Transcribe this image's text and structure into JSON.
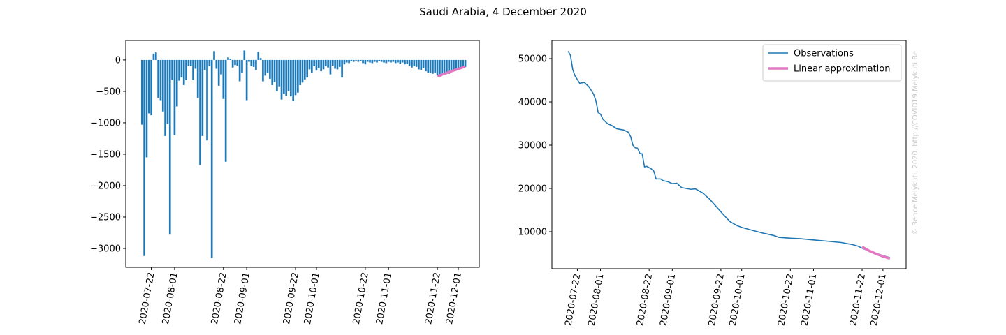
{
  "title": "Saudi Arabia, 4 December 2020",
  "annotation": "© Bence Melykuti, 2020. http://COVID19.Melykuti.Be",
  "chart_data": [
    {
      "type": "bar",
      "color": "#1f77b4",
      "x": [
        "2020-07-18",
        "2020-07-19",
        "2020-07-20",
        "2020-07-21",
        "2020-07-22",
        "2020-07-23",
        "2020-07-24",
        "2020-07-25",
        "2020-07-26",
        "2020-07-27",
        "2020-07-28",
        "2020-07-29",
        "2020-07-30",
        "2020-07-31",
        "2020-08-01",
        "2020-08-02",
        "2020-08-03",
        "2020-08-04",
        "2020-08-05",
        "2020-08-06",
        "2020-08-07",
        "2020-08-08",
        "2020-08-09",
        "2020-08-10",
        "2020-08-11",
        "2020-08-12",
        "2020-08-13",
        "2020-08-14",
        "2020-08-15",
        "2020-08-16",
        "2020-08-17",
        "2020-08-18",
        "2020-08-19",
        "2020-08-20",
        "2020-08-21",
        "2020-08-22",
        "2020-08-23",
        "2020-08-24",
        "2020-08-25",
        "2020-08-26",
        "2020-08-27",
        "2020-08-28",
        "2020-08-29",
        "2020-08-30",
        "2020-08-31",
        "2020-09-01",
        "2020-09-02",
        "2020-09-03",
        "2020-09-04",
        "2020-09-05",
        "2020-09-06",
        "2020-09-07",
        "2020-09-08",
        "2020-09-09",
        "2020-09-10",
        "2020-09-11",
        "2020-09-12",
        "2020-09-13",
        "2020-09-14",
        "2020-09-15",
        "2020-09-16",
        "2020-09-17",
        "2020-09-18",
        "2020-09-19",
        "2020-09-20",
        "2020-09-21",
        "2020-09-22",
        "2020-09-23",
        "2020-09-24",
        "2020-09-25",
        "2020-09-26",
        "2020-09-27",
        "2020-09-28",
        "2020-09-29",
        "2020-09-30",
        "2020-10-01",
        "2020-10-02",
        "2020-10-03",
        "2020-10-04",
        "2020-10-05",
        "2020-10-06",
        "2020-10-07",
        "2020-10-08",
        "2020-10-09",
        "2020-10-10",
        "2020-10-11",
        "2020-10-12",
        "2020-10-13",
        "2020-10-14",
        "2020-10-15",
        "2020-10-16",
        "2020-10-17",
        "2020-10-18",
        "2020-10-19",
        "2020-10-20",
        "2020-10-21",
        "2020-10-22",
        "2020-10-23",
        "2020-10-24",
        "2020-10-25",
        "2020-10-26",
        "2020-10-27",
        "2020-10-28",
        "2020-10-29",
        "2020-10-30",
        "2020-10-31",
        "2020-11-01",
        "2020-11-02",
        "2020-11-03",
        "2020-11-04",
        "2020-11-05",
        "2020-11-06",
        "2020-11-07",
        "2020-11-08",
        "2020-11-09",
        "2020-11-10",
        "2020-11-11",
        "2020-11-12",
        "2020-11-13",
        "2020-11-14",
        "2020-11-15",
        "2020-11-16",
        "2020-11-17",
        "2020-11-18",
        "2020-11-19",
        "2020-11-20",
        "2020-11-21",
        "2020-11-22",
        "2020-11-23",
        "2020-11-24",
        "2020-11-25",
        "2020-11-26",
        "2020-11-27",
        "2020-11-28",
        "2020-11-29",
        "2020-11-30",
        "2020-12-01",
        "2020-12-02",
        "2020-12-03",
        "2020-12-04"
      ],
      "values": [
        -1030,
        -3120,
        -1550,
        -850,
        -880,
        100,
        120,
        -600,
        -640,
        -820,
        -1210,
        -1020,
        -2780,
        -320,
        -1200,
        -740,
        -330,
        -280,
        -400,
        -320,
        -90,
        -100,
        -320,
        -140,
        -600,
        -1670,
        -1210,
        -160,
        -1280,
        -100,
        -3150,
        140,
        -140,
        -410,
        -230,
        -620,
        -1620,
        40,
        20,
        -120,
        -80,
        -90,
        -340,
        -200,
        150,
        -640,
        -30,
        -100,
        -110,
        -160,
        130,
        30,
        -340,
        -250,
        -200,
        -300,
        -400,
        -350,
        -500,
        -420,
        -630,
        -540,
        -570,
        -490,
        -580,
        -650,
        -560,
        -520,
        -400,
        -360,
        -310,
        -280,
        -150,
        -200,
        -100,
        -170,
        -130,
        -180,
        -150,
        -100,
        -120,
        -230,
        -90,
        -140,
        -150,
        -110,
        -280,
        -70,
        -40,
        -50,
        -20,
        -30,
        -10,
        -30,
        -20,
        -50,
        -70,
        -30,
        -40,
        -50,
        -30,
        -40,
        -20,
        -30,
        -40,
        -50,
        -30,
        -40,
        -30,
        -50,
        -40,
        -60,
        -40,
        -70,
        -60,
        -90,
        -120,
        -100,
        -110,
        -150,
        -160,
        -130,
        -180,
        -200,
        -210,
        -220,
        -200,
        -250,
        -270,
        -230,
        -240,
        -200,
        -220,
        -180,
        -160,
        -170,
        -150,
        -140,
        -130,
        -110
      ],
      "overlay": {
        "color": "#e377c2",
        "x": [
          "2020-11-22",
          "2020-11-28",
          "2020-12-04"
        ],
        "values": [
          -260,
          -180,
          -105
        ]
      },
      "xlim": [
        "2020-07-11",
        "2020-12-10"
      ],
      "ylim": [
        -3300,
        310
      ],
      "xticks": [
        "2020-07-22",
        "2020-08-01",
        "2020-08-22",
        "2020-09-01",
        "2020-09-22",
        "2020-10-01",
        "2020-10-22",
        "2020-11-01",
        "2020-11-22",
        "2020-12-01"
      ],
      "yticks": [
        0,
        {
          "value": -500,
          "label": "−500"
        },
        {
          "value": -1000,
          "label": "−1000"
        },
        {
          "value": -1500,
          "label": "−1500"
        },
        {
          "value": -2000,
          "label": "−2000"
        },
        {
          "value": -2500,
          "label": "−2500"
        },
        {
          "value": -3000,
          "label": "−3000"
        }
      ]
    },
    {
      "type": "line",
      "legend": "upper right",
      "series": [
        {
          "name": "Observations",
          "color": "#1f77b4",
          "x": [
            "2020-07-18",
            "2020-07-19",
            "2020-07-20",
            "2020-07-21",
            "2020-07-23",
            "2020-07-25",
            "2020-07-27",
            "2020-07-29",
            "2020-07-30",
            "2020-07-31",
            "2020-08-01",
            "2020-08-02",
            "2020-08-04",
            "2020-08-06",
            "2020-08-08",
            "2020-08-11",
            "2020-08-13",
            "2020-08-14",
            "2020-08-15",
            "2020-08-16",
            "2020-08-17",
            "2020-08-18",
            "2020-08-19",
            "2020-08-20",
            "2020-08-21",
            "2020-08-23",
            "2020-08-24",
            "2020-08-25",
            "2020-08-27",
            "2020-08-28",
            "2020-08-30",
            "2020-09-01",
            "2020-09-03",
            "2020-09-05",
            "2020-09-07",
            "2020-09-09",
            "2020-09-11",
            "2020-09-14",
            "2020-09-17",
            "2020-09-20",
            "2020-09-23",
            "2020-09-26",
            "2020-09-29",
            "2020-10-01",
            "2020-10-05",
            "2020-10-10",
            "2020-10-15",
            "2020-10-17",
            "2020-10-22",
            "2020-10-26",
            "2020-11-01",
            "2020-11-07",
            "2020-11-13",
            "2020-11-18",
            "2020-11-20",
            "2020-11-22",
            "2020-11-25",
            "2020-11-28",
            "2020-12-01",
            "2020-12-04"
          ],
          "values": [
            51700,
            50800,
            47500,
            46000,
            44300,
            44500,
            43500,
            41800,
            40300,
            37500,
            37200,
            36000,
            35000,
            34500,
            33800,
            33500,
            33000,
            32000,
            30000,
            29400,
            29300,
            28100,
            28000,
            25000,
            25100,
            24500,
            24000,
            22200,
            22200,
            21800,
            21600,
            21100,
            21200,
            20200,
            20000,
            19800,
            19900,
            19000,
            17600,
            15800,
            14000,
            12300,
            11400,
            11000,
            10400,
            9700,
            9100,
            8700,
            8500,
            8400,
            8100,
            7800,
            7500,
            7000,
            6700,
            6200,
            5500,
            5000,
            4500,
            4000
          ]
        },
        {
          "name": "Linear approximation",
          "color": "#e377c2",
          "x": [
            "2020-11-22",
            "2020-11-25",
            "2020-11-28",
            "2020-12-01",
            "2020-12-04"
          ],
          "values": [
            6500,
            5600,
            4900,
            4300,
            3800
          ]
        }
      ],
      "xlim": [
        "2020-07-11",
        "2020-12-11"
      ],
      "ylim": [
        1450,
        54200
      ],
      "xticks": [
        "2020-07-22",
        "2020-08-01",
        "2020-08-22",
        "2020-09-01",
        "2020-09-22",
        "2020-10-01",
        "2020-10-22",
        "2020-11-01",
        "2020-11-22",
        "2020-12-01"
      ],
      "yticks": [
        10000,
        20000,
        30000,
        40000,
        50000
      ]
    }
  ]
}
